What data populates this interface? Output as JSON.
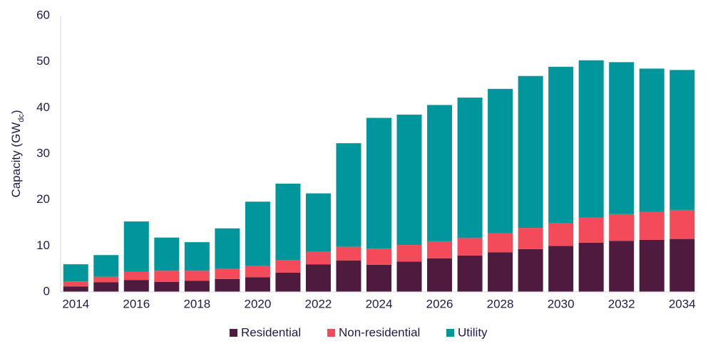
{
  "chart_data": {
    "type": "stacked_bar",
    "y_label": {
      "main": "Capacity (GW",
      "sub": "dc",
      "close": ")"
    },
    "categories": [
      "2014",
      null,
      "2016",
      null,
      "2018",
      null,
      "2020",
      null,
      "2022",
      null,
      "2024",
      null,
      "2026",
      null,
      "2028",
      null,
      "2030",
      null,
      "2032",
      null,
      "2034"
    ],
    "series": [
      {
        "name": "Residential",
        "color": "#4e1a3d",
        "values": [
          1.2,
          2.1,
          2.6,
          2.2,
          2.4,
          2.8,
          3.2,
          4.2,
          6.0,
          6.8,
          5.9,
          6.6,
          7.3,
          7.9,
          8.6,
          9.3,
          10.0,
          10.7,
          11.1,
          11.3,
          11.5
        ]
      },
      {
        "name": "Non-residential",
        "color": "#f44b5a",
        "values": [
          1.1,
          1.2,
          1.8,
          2.4,
          2.2,
          2.2,
          2.4,
          2.7,
          2.7,
          3.0,
          3.5,
          3.6,
          3.7,
          3.8,
          4.1,
          4.6,
          5.0,
          5.4,
          5.8,
          6.1,
          6.3
        ]
      },
      {
        "name": "Utility",
        "color": "#00969b",
        "values": [
          3.7,
          4.7,
          10.9,
          7.2,
          6.2,
          8.8,
          14.0,
          16.6,
          12.7,
          22.5,
          28.4,
          28.3,
          29.6,
          30.5,
          31.4,
          33.0,
          33.9,
          34.2,
          33.0,
          31.1,
          30.4
        ]
      }
    ],
    "ylim": [
      0,
      60
    ],
    "yticks": [
      0,
      10,
      20,
      30,
      40,
      50,
      60
    ],
    "grid": false,
    "legend": "bottom"
  }
}
